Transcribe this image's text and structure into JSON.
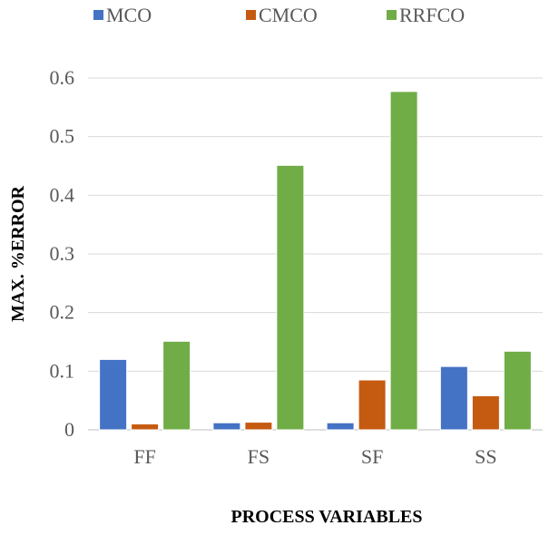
{
  "chart_data": {
    "type": "bar",
    "categories": [
      "FF",
      "FS",
      "SF",
      "SS"
    ],
    "series": [
      {
        "name": "MCO",
        "values": [
          0.12,
          0.012,
          0.012,
          0.108
        ],
        "color": "#4472C4"
      },
      {
        "name": "CMCO",
        "values": [
          0.01,
          0.013,
          0.085,
          0.058
        ],
        "color": "#C55A11"
      },
      {
        "name": "RRFCO",
        "values": [
          0.151,
          0.451,
          0.577,
          0.134
        ],
        "color": "#70AD47"
      }
    ],
    "title": "",
    "xlabel": "PROCESS VARIABLES",
    "ylabel": "MAX. %ERROR",
    "ylim": [
      0,
      0.6
    ],
    "yticks": [
      0,
      0.1,
      0.2,
      0.3,
      0.4,
      0.5,
      0.6
    ],
    "ytick_labels": [
      "0",
      "0.1",
      "0.2",
      "0.3",
      "0.4",
      "0.5",
      "0.6"
    ],
    "grid": true,
    "legend_position": "top"
  }
}
